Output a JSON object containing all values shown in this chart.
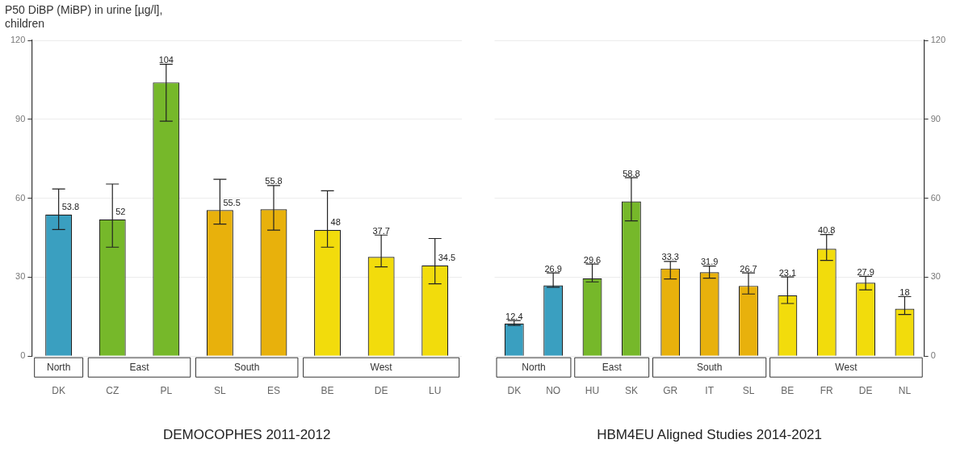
{
  "chart_data": [
    {
      "type": "bar",
      "title": "P50 DiBP (MiBP) in urine [µg/l],\nchildren",
      "xlabel": "DEMOCOPHES 2011-2012",
      "categories": [
        "DK",
        "CZ",
        "PL",
        "SL",
        "ES",
        "BE",
        "DE",
        "LU"
      ],
      "values": [
        53.8,
        52,
        104,
        55.5,
        55.8,
        48,
        37.7,
        34.5
      ],
      "colors": [
        "#3a9fc0",
        "#76b82a",
        "#76b82a",
        "#e8b10c",
        "#e8b10c",
        "#f2dc0c",
        "#f2dc0c",
        "#f2dc0c"
      ],
      "errors": [
        [
          48.1,
          63.5
        ],
        [
          41.4,
          65.4
        ],
        [
          89.3,
          110.9
        ],
        [
          50.2,
          67.2
        ],
        [
          47.9,
          64.8
        ],
        [
          41.4,
          62.8
        ],
        [
          33.9,
          46.0
        ],
        [
          27.5,
          44.7
        ]
      ],
      "data_labels": true,
      "annotations": [
        "North",
        "East",
        "South",
        "West"
      ],
      "ylim": [
        0,
        120
      ],
      "yticks": [
        0,
        30,
        60,
        90,
        120
      ],
      "grid": "y",
      "legend": false
    },
    {
      "type": "bar",
      "xlabel": "HBM4EU Aligned Studies 2014-2021",
      "categories": [
        "DK",
        "NO",
        "HU",
        "SK",
        "GR",
        "IT",
        "SL",
        "BE",
        "FR",
        "DE",
        "NL"
      ],
      "values": [
        12.4,
        26.9,
        29.6,
        58.8,
        33.3,
        31.9,
        26.7,
        23.1,
        40.8,
        27.9,
        18
      ],
      "colors": [
        "#3a9fc0",
        "#3a9fc0",
        "#76b82a",
        "#76b82a",
        "#e8b10c",
        "#e8b10c",
        "#e8b10c",
        "#f2dc0c",
        "#f2dc0c",
        "#f2dc0c",
        "#f2dc0c"
      ],
      "errors": [
        [
          11.7,
          13.5
        ],
        [
          26.2,
          31.6
        ],
        [
          28.2,
          35.0
        ],
        [
          51.4,
          67.8
        ],
        [
          29.3,
          36.0
        ],
        [
          29.6,
          34.2
        ],
        [
          23.6,
          31.6
        ],
        [
          20.0,
          30.1
        ],
        [
          36.4,
          46.2
        ],
        [
          25.2,
          30.3
        ],
        [
          15.8,
          22.6
        ]
      ],
      "data_labels": true,
      "annotations": [
        "North",
        "East",
        "South",
        "West"
      ],
      "ylim": [
        0,
        120
      ],
      "yticks": [
        0,
        30,
        60,
        90,
        120
      ],
      "grid": "y",
      "legend": false
    }
  ]
}
